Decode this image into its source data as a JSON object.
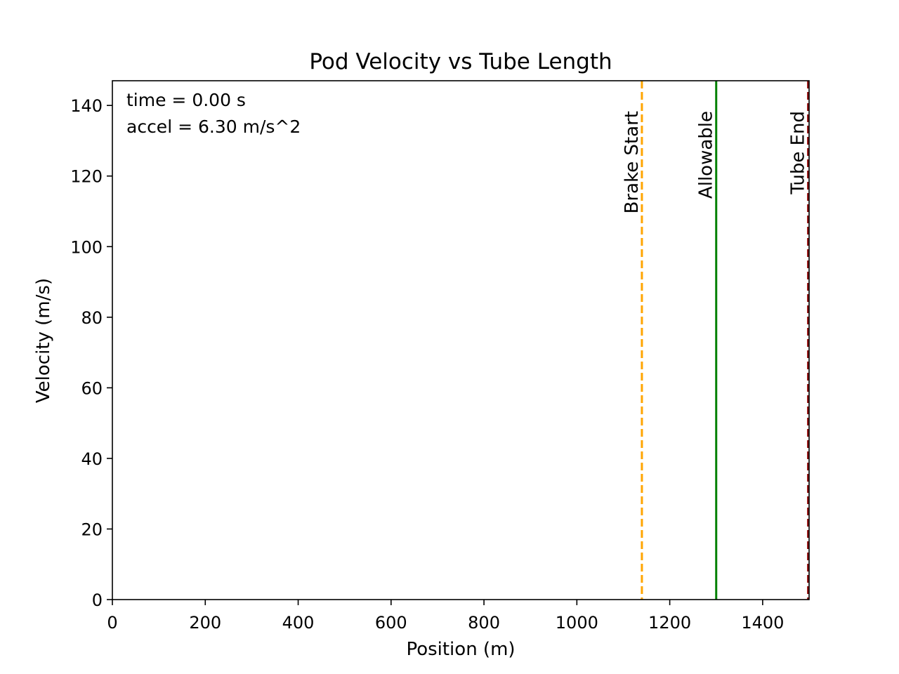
{
  "chart_data": {
    "type": "line",
    "title": "Pod Velocity vs Tube Length",
    "xlabel": "Position (m)",
    "ylabel": "Velocity (m/s)",
    "xlim": [
      0,
      1500
    ],
    "ylim": [
      0,
      147
    ],
    "xticks": [
      0,
      200,
      400,
      600,
      800,
      1000,
      1200,
      1400
    ],
    "yticks": [
      0,
      20,
      40,
      60,
      80,
      100,
      120,
      140
    ],
    "grid": false,
    "series": [],
    "vertical_lines": [
      {
        "label": "Brake Start",
        "x": 1140,
        "color": "#FFA500",
        "style": "dashed"
      },
      {
        "label": "Allowable",
        "x": 1300,
        "color": "#008000",
        "style": "solid"
      },
      {
        "label": "Tube End",
        "x": 1498,
        "color": "#8B0000",
        "style": "dashed"
      }
    ],
    "annotations": {
      "time": "time = 0.00 s",
      "accel": "accel = 6.30 m/s^2"
    }
  }
}
